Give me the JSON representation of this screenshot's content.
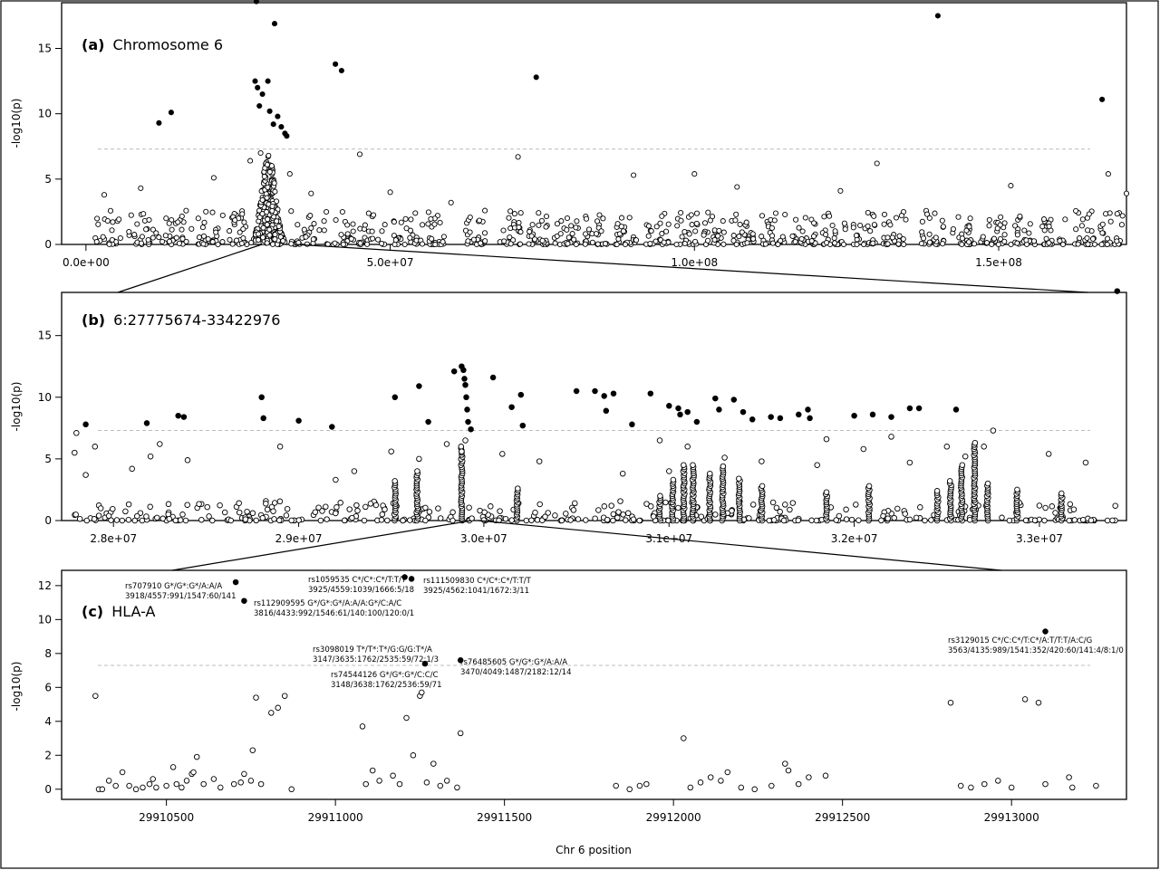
{
  "sig_threshold": 7.3,
  "xlabel": "Chr 6 position",
  "chart_data": [
    {
      "panel": "a",
      "type": "scatter",
      "title_tag": "(a)",
      "title": "Chromosome 6",
      "ylabel": "-log10(p)",
      "xlabel": "",
      "xlim": [
        -4000000,
        171000000
      ],
      "ylim": [
        0,
        18.5
      ],
      "xticks": [
        0,
        50000000,
        100000000,
        150000000
      ],
      "xtick_labels": [
        "0.0e+00",
        "5.0e+07",
        "1.0e+08",
        "1.5e+08"
      ],
      "yticks": [
        0,
        5,
        10,
        15
      ],
      "ytick_labels": [
        "0",
        "5",
        "10",
        "15"
      ],
      "significant_points": [
        [
          12000000,
          9.3
        ],
        [
          14000000,
          10.1
        ],
        [
          28000000,
          18.6
        ],
        [
          31000000,
          16.9
        ],
        [
          41000000,
          13.8
        ],
        [
          42000000,
          13.3
        ],
        [
          74000000,
          12.8
        ],
        [
          140000000,
          17.5
        ],
        [
          167000000,
          11.1
        ],
        [
          27800000,
          12.5
        ],
        [
          28200000,
          12.0
        ],
        [
          29000000,
          11.5
        ],
        [
          29900000,
          12.5
        ],
        [
          30200000,
          10.2
        ],
        [
          31500000,
          9.8
        ],
        [
          32100000,
          9.0
        ],
        [
          32700000,
          8.5
        ],
        [
          33000000,
          8.3
        ],
        [
          28500000,
          10.6
        ],
        [
          30800000,
          9.2
        ]
      ],
      "nonsig_points": [
        [
          3000000,
          3.8
        ],
        [
          9000000,
          4.3
        ],
        [
          21000000,
          5.1
        ],
        [
          27000000,
          6.4
        ],
        [
          28700000,
          7.0
        ],
        [
          30000000,
          6.8
        ],
        [
          33500000,
          5.4
        ],
        [
          37000000,
          3.9
        ],
        [
          45000000,
          6.9
        ],
        [
          50000000,
          4.0
        ],
        [
          71000000,
          6.7
        ],
        [
          90000000,
          5.3
        ],
        [
          100000000,
          5.4
        ],
        [
          107000000,
          4.4
        ],
        [
          130000000,
          6.2
        ],
        [
          152000000,
          4.5
        ],
        [
          168000000,
          5.4
        ],
        [
          171000000,
          3.9
        ],
        [
          124000000,
          4.1
        ],
        [
          60000000,
          3.2
        ]
      ],
      "cluster_windows": [
        [
          1000000,
          5800000
        ],
        [
          7000000,
          12000000
        ],
        [
          12500000,
          17500000
        ],
        [
          18000000,
          22800000
        ],
        [
          23500000,
          26500000
        ],
        [
          33500000,
          38500000
        ],
        [
          39000000,
          44000000
        ],
        [
          44800000,
          49500000
        ],
        [
          50000000,
          54500000
        ],
        [
          55000000,
          59000000
        ],
        [
          62000000,
          66000000
        ],
        [
          68000000,
          71500000
        ],
        [
          72500000,
          76000000
        ],
        [
          77000000,
          81000000
        ],
        [
          82000000,
          86000000
        ],
        [
          87000000,
          90500000
        ],
        [
          92000000,
          96000000
        ],
        [
          97000000,
          100500000
        ],
        [
          101500000,
          105000000
        ],
        [
          106000000,
          110000000
        ],
        [
          111000000,
          115000000
        ],
        [
          116000000,
          120000000
        ],
        [
          121000000,
          125000000
        ],
        [
          126000000,
          130000000
        ],
        [
          131000000,
          135000000
        ],
        [
          137000000,
          141000000
        ],
        [
          142000000,
          146000000
        ],
        [
          147000000,
          151000000
        ],
        [
          152000000,
          156000000
        ],
        [
          157000000,
          161000000
        ],
        [
          162000000,
          166000000
        ],
        [
          166500000,
          170500000
        ]
      ],
      "dense_peak": {
        "center": 30000000,
        "width": 7000000,
        "max_y": 7.0
      }
    },
    {
      "panel": "b",
      "type": "scatter",
      "title_tag": "(b)",
      "title": "6:27775674-33422976",
      "ylabel": "-log10(p)",
      "xlabel": "",
      "xlim": [
        27720000,
        33470000
      ],
      "ylim": [
        0,
        18.5
      ],
      "xticks": [
        28000000,
        29000000,
        30000000,
        31000000,
        32000000,
        33000000
      ],
      "xtick_labels": [
        "2.8e+07",
        "2.9e+07",
        "3.0e+07",
        "3.1e+07",
        "3.2e+07",
        "3.3e+07"
      ],
      "yticks": [
        0,
        5,
        10,
        15
      ],
      "ytick_labels": [
        "0",
        "5",
        "10",
        "15"
      ],
      "significant_points": [
        [
          27850000,
          7.8
        ],
        [
          28180000,
          7.9
        ],
        [
          28350000,
          8.5
        ],
        [
          28380000,
          8.4
        ],
        [
          28800000,
          10.0
        ],
        [
          28810000,
          8.3
        ],
        [
          29000000,
          8.1
        ],
        [
          29180000,
          7.6
        ],
        [
          29520000,
          10.0
        ],
        [
          29650000,
          10.9
        ],
        [
          29700000,
          8.0
        ],
        [
          29840000,
          12.1
        ],
        [
          29880000,
          12.5
        ],
        [
          29890000,
          12.2
        ],
        [
          29895000,
          11.5
        ],
        [
          29900000,
          11.0
        ],
        [
          29905000,
          10.0
        ],
        [
          29910000,
          9.0
        ],
        [
          29915000,
          8.0
        ],
        [
          29930000,
          7.4
        ],
        [
          30050000,
          11.6
        ],
        [
          30150000,
          9.2
        ],
        [
          30200000,
          10.2
        ],
        [
          30210000,
          7.7
        ],
        [
          30500000,
          10.5
        ],
        [
          30600000,
          10.5
        ],
        [
          30650000,
          10.1
        ],
        [
          30700000,
          10.3
        ],
        [
          30660000,
          8.9
        ],
        [
          30800000,
          7.8
        ],
        [
          30900000,
          10.3
        ],
        [
          31000000,
          9.3
        ],
        [
          31050000,
          9.1
        ],
        [
          31060000,
          8.6
        ],
        [
          31100000,
          8.8
        ],
        [
          31150000,
          8.0
        ],
        [
          31250000,
          9.9
        ],
        [
          31270000,
          9.0
        ],
        [
          31350000,
          9.8
        ],
        [
          31400000,
          8.8
        ],
        [
          31450000,
          8.2
        ],
        [
          31550000,
          8.4
        ],
        [
          31600000,
          8.3
        ],
        [
          31700000,
          8.6
        ],
        [
          31750000,
          9.0
        ],
        [
          31760000,
          8.3
        ],
        [
          32000000,
          8.5
        ],
        [
          32100000,
          8.6
        ],
        [
          32200000,
          8.4
        ],
        [
          32300000,
          9.1
        ],
        [
          32350000,
          9.1
        ],
        [
          32550000,
          9.0
        ],
        [
          33420000,
          18.6
        ]
      ],
      "nonsig_points": [
        [
          27800000,
          7.1
        ],
        [
          27790000,
          5.5
        ],
        [
          27850000,
          3.7
        ],
        [
          27900000,
          6.0
        ],
        [
          28100000,
          4.2
        ],
        [
          28200000,
          5.2
        ],
        [
          28250000,
          6.2
        ],
        [
          28400000,
          4.9
        ],
        [
          28900000,
          6.0
        ],
        [
          29300000,
          4.0
        ],
        [
          29500000,
          5.6
        ],
        [
          29650000,
          5.0
        ],
        [
          29800000,
          6.2
        ],
        [
          29880000,
          5.6
        ],
        [
          29900000,
          6.5
        ],
        [
          30100000,
          5.4
        ],
        [
          30300000,
          4.8
        ],
        [
          30750000,
          3.8
        ],
        [
          30950000,
          6.5
        ],
        [
          31100000,
          6.0
        ],
        [
          31300000,
          5.1
        ],
        [
          31500000,
          4.8
        ],
        [
          31800000,
          4.5
        ],
        [
          31850000,
          6.6
        ],
        [
          32050000,
          5.8
        ],
        [
          32200000,
          6.8
        ],
        [
          32300000,
          4.7
        ],
        [
          32500000,
          6.0
        ],
        [
          32700000,
          6.0
        ],
        [
          32750000,
          7.3
        ],
        [
          33050000,
          5.4
        ],
        [
          33250000,
          4.7
        ],
        [
          33410000,
          1.2
        ],
        [
          31000000,
          4.0
        ],
        [
          29200000,
          3.3
        ],
        [
          32600000,
          5.2
        ]
      ],
      "dense_columns": [
        [
          29880000,
          6.0
        ],
        [
          29640000,
          4.0
        ],
        [
          29520000,
          3.2
        ],
        [
          30180000,
          2.6
        ],
        [
          30950000,
          2.0
        ],
        [
          31020000,
          3.3
        ],
        [
          31080000,
          4.5
        ],
        [
          31130000,
          4.5
        ],
        [
          31220000,
          3.8
        ],
        [
          31290000,
          4.4
        ],
        [
          31380000,
          3.4
        ],
        [
          31500000,
          2.8
        ],
        [
          31850000,
          2.3
        ],
        [
          32080000,
          2.8
        ],
        [
          32450000,
          2.4
        ],
        [
          32520000,
          3.2
        ],
        [
          32580000,
          4.5
        ],
        [
          32650000,
          6.3
        ],
        [
          32720000,
          3.0
        ],
        [
          32880000,
          2.5
        ],
        [
          33120000,
          2.2
        ]
      ]
    },
    {
      "panel": "c",
      "type": "scatter",
      "title_tag": "(c)",
      "title": "HLA-A",
      "ylabel": "-log10(p)",
      "xlabel": "Chr 6 position",
      "xlim": [
        29910190,
        29913340
      ],
      "ylim": [
        -0.6,
        12.9
      ],
      "xticks": [
        29910500,
        29911000,
        29911500,
        29912000,
        29912500,
        29913000
      ],
      "xtick_labels": [
        "29910500",
        "29911000",
        "29911500",
        "29912000",
        "29912500",
        "29913000"
      ],
      "yticks": [
        0,
        2,
        4,
        6,
        8,
        10,
        12
      ],
      "ytick_labels": [
        "0",
        "2",
        "4",
        "6",
        "8",
        "10",
        "12"
      ],
      "significant_points": [
        [
          29910705,
          12.2
        ],
        [
          29910730,
          11.1
        ],
        [
          29911205,
          12.5
        ],
        [
          29911225,
          12.4
        ],
        [
          29911265,
          7.4
        ],
        [
          29911370,
          7.6
        ],
        [
          29913100,
          9.3
        ]
      ],
      "nonsig_points": [
        [
          29910290,
          5.5
        ],
        [
          29910300,
          0.0
        ],
        [
          29910310,
          0.0
        ],
        [
          29910330,
          0.5
        ],
        [
          29910350,
          0.2
        ],
        [
          29910370,
          1.0
        ],
        [
          29910390,
          0.2
        ],
        [
          29910410,
          0.0
        ],
        [
          29910430,
          0.1
        ],
        [
          29910450,
          0.3
        ],
        [
          29910460,
          0.6
        ],
        [
          29910470,
          0.1
        ],
        [
          29910500,
          0.2
        ],
        [
          29910520,
          1.3
        ],
        [
          29910530,
          0.3
        ],
        [
          29910545,
          0.1
        ],
        [
          29910560,
          0.5
        ],
        [
          29910575,
          0.9
        ],
        [
          29910580,
          1.0
        ],
        [
          29910590,
          1.9
        ],
        [
          29910610,
          0.3
        ],
        [
          29910640,
          0.6
        ],
        [
          29910660,
          0.1
        ],
        [
          29910700,
          0.3
        ],
        [
          29910720,
          0.4
        ],
        [
          29910730,
          0.9
        ],
        [
          29910750,
          0.5
        ],
        [
          29910765,
          5.4
        ],
        [
          29910780,
          0.3
        ],
        [
          29910810,
          4.5
        ],
        [
          29910830,
          4.8
        ],
        [
          29910850,
          5.5
        ],
        [
          29910870,
          0.0
        ],
        [
          29910755,
          2.3
        ],
        [
          29911080,
          3.7
        ],
        [
          29911090,
          0.3
        ],
        [
          29911110,
          1.1
        ],
        [
          29911130,
          0.5
        ],
        [
          29911170,
          0.8
        ],
        [
          29911190,
          0.3
        ],
        [
          29911210,
          4.2
        ],
        [
          29911230,
          2.0
        ],
        [
          29911250,
          5.5
        ],
        [
          29911255,
          5.7
        ],
        [
          29911270,
          0.4
        ],
        [
          29911290,
          1.5
        ],
        [
          29911310,
          0.2
        ],
        [
          29911330,
          0.5
        ],
        [
          29911360,
          0.1
        ],
        [
          29911370,
          3.3
        ],
        [
          29911830,
          0.2
        ],
        [
          29911870,
          0.0
        ],
        [
          29911900,
          0.2
        ],
        [
          29911920,
          0.3
        ],
        [
          29912030,
          3.0
        ],
        [
          29912050,
          0.1
        ],
        [
          29912080,
          0.4
        ],
        [
          29912110,
          0.7
        ],
        [
          29912140,
          0.5
        ],
        [
          29912160,
          1.0
        ],
        [
          29912200,
          0.1
        ],
        [
          29912240,
          0.0
        ],
        [
          29912290,
          0.2
        ],
        [
          29912330,
          1.5
        ],
        [
          29912340,
          1.1
        ],
        [
          29912370,
          0.3
        ],
        [
          29912400,
          0.7
        ],
        [
          29912450,
          0.8
        ],
        [
          29912820,
          5.1
        ],
        [
          29912850,
          0.2
        ],
        [
          29912880,
          0.1
        ],
        [
          29912920,
          0.3
        ],
        [
          29912960,
          0.5
        ],
        [
          29913000,
          0.1
        ],
        [
          29913040,
          5.3
        ],
        [
          29913080,
          5.1
        ],
        [
          29913100,
          0.3
        ],
        [
          29913170,
          0.7
        ],
        [
          29913180,
          0.1
        ],
        [
          29913250,
          0.2
        ]
      ],
      "annotations": [
        {
          "snp": "rs707910 G*/G*:G*/A:A/A",
          "counts": "3918/4557:991/1547:60/141"
        },
        {
          "snp": "rs1059535 C*/C*:C*/T:T/T",
          "counts": "3925/4559:1039/1666:5/18"
        },
        {
          "snp": "rs111509830 C*/C*:C*/T:T/T",
          "counts": "3925/4562:1041/1672:3/11"
        },
        {
          "snp": "rs112909595 G*/G*:G*/A:A/A:G*/C:A/C",
          "counts": "3816/4433:992/1546:61/140:100/120:0/1"
        },
        {
          "snp": "rs3098019 T*/T*:T*/G:G/G:T*/A",
          "counts": "3147/3635:1762/2535:59/72:1/3"
        },
        {
          "snp": "rs74544126 G*/G*:G*/C:C/C",
          "counts": "3148/3638:1762/2536:59/71"
        },
        {
          "snp": "rs76485605 G*/G*:G*/A:A/A",
          "counts": "3470/4049:1487/2182:12/14"
        },
        {
          "snp": "rs3129015 C*/C:C*/T:C*/A:T/T:T/A:C/G",
          "counts": "3563/4135:989/1541:352/420:60/141:4/8:1/0"
        }
      ]
    }
  ]
}
